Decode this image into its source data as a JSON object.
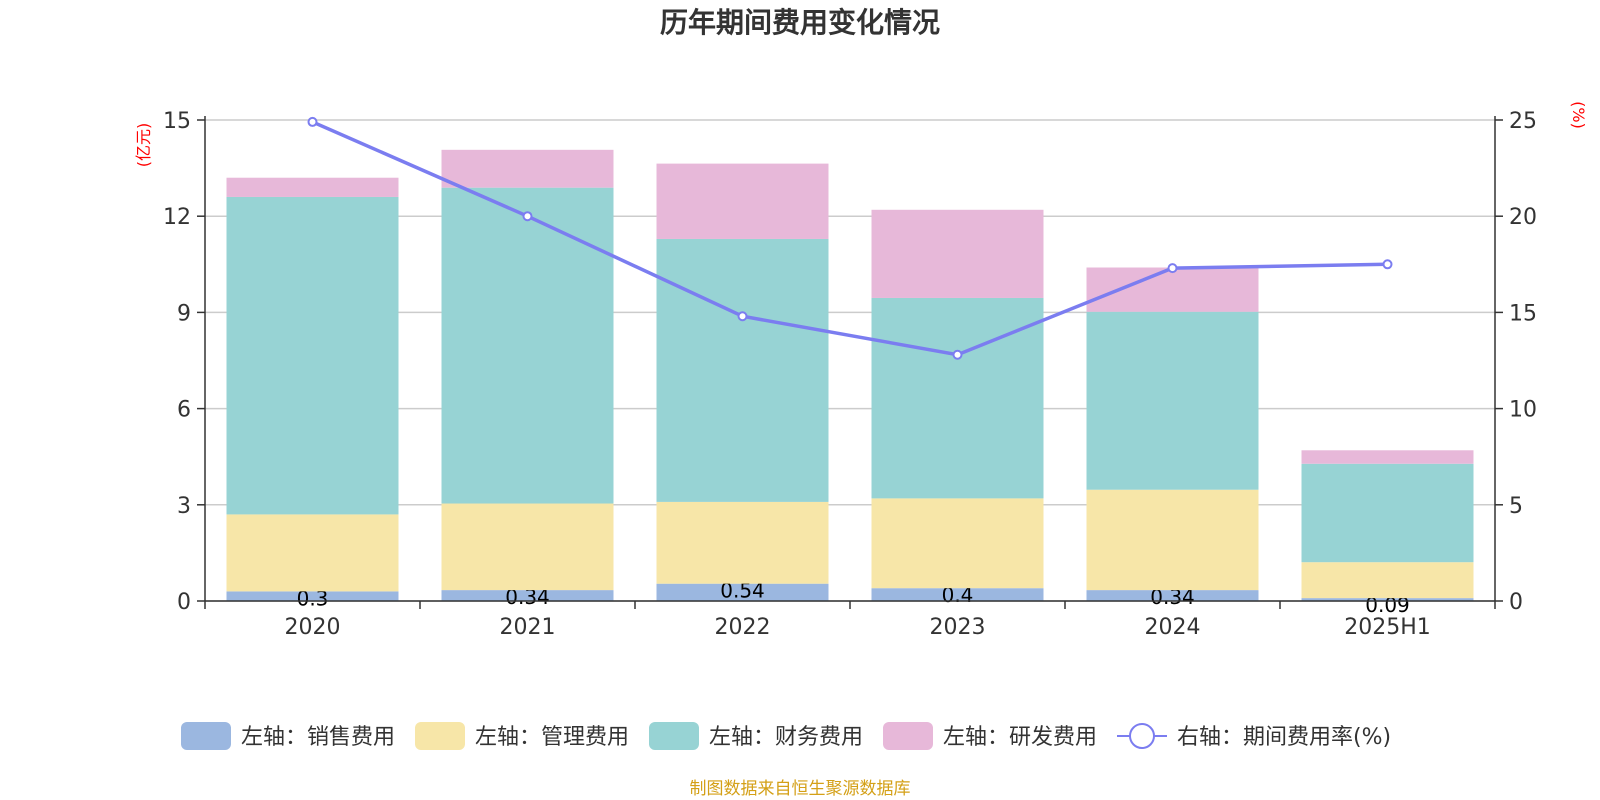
{
  "chart_data": {
    "type": "bar",
    "stacked": true,
    "title": "历年期间费用变化情况",
    "categories": [
      "2020",
      "2021",
      "2022",
      "2023",
      "2024",
      "2025H1"
    ],
    "left_axis": {
      "unit": "(亿元)",
      "ylim": [
        0,
        15
      ],
      "ticks": [
        "0",
        "3",
        "6",
        "9",
        "12",
        "15"
      ]
    },
    "right_axis": {
      "unit": "(%)",
      "ylim": [
        0,
        25
      ],
      "ticks": [
        "0",
        "5",
        "10",
        "15",
        "20",
        "25"
      ]
    },
    "grid": true,
    "legend_position": "bottom",
    "series": [
      {
        "name": "左轴：销售费用",
        "axis": "left",
        "color": "#9bb7e0",
        "values": [
          0.3,
          0.34,
          0.54,
          0.4,
          0.34,
          0.09
        ],
        "labels": [
          "0.3",
          "0.34",
          "0.54",
          "0.4",
          "0.34",
          "0.09"
        ]
      },
      {
        "name": "左轴：管理费用",
        "axis": "left",
        "color": "#f7e6a8",
        "values": [
          2.4,
          2.7,
          2.55,
          2.8,
          3.13,
          1.12
        ]
      },
      {
        "name": "左轴：财务费用",
        "axis": "left",
        "color": "#97d3d4",
        "values": [
          9.9,
          9.85,
          8.2,
          6.25,
          5.55,
          3.07
        ]
      },
      {
        "name": "左轴：研发费用",
        "axis": "left",
        "color": "#e7b8d9",
        "values": [
          0.6,
          1.18,
          2.35,
          2.75,
          1.38,
          0.42
        ]
      },
      {
        "name": "右轴：期间费用率(%)",
        "axis": "right",
        "type": "line",
        "color": "#7b7df0",
        "values": [
          24.9,
          20.0,
          14.8,
          12.8,
          17.3,
          17.5
        ]
      }
    ]
  },
  "footer": {
    "source": "制图数据来自恒生聚源数据库"
  }
}
